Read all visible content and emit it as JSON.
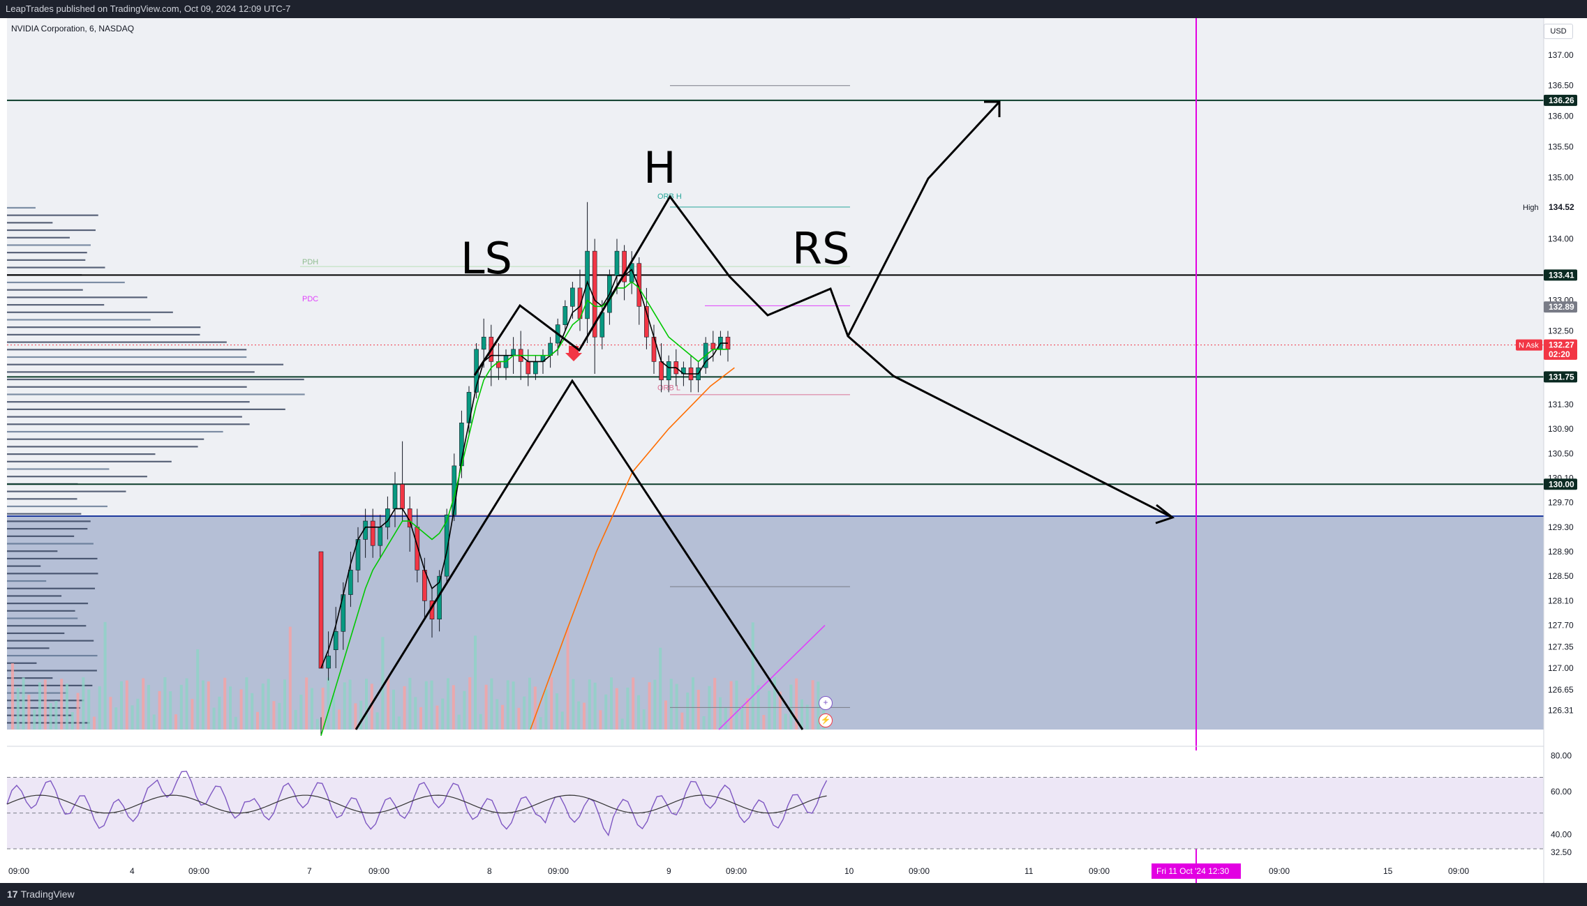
{
  "header": {
    "published": "LeapTrades published on TradingView.com, Oct 09, 2024 12:09 UTC-7",
    "symbol": "NVIDIA Corporation, 6, NASDAQ",
    "currency": "USD"
  },
  "footer": {
    "brand": "TradingView"
  },
  "colors": {
    "bg": "#ffffff",
    "axis_text": "#131722",
    "up": "#089981",
    "down": "#f23645",
    "ema_fast": "#000000",
    "ema_mid": "#00c800",
    "ema_slow": "#ff6d00",
    "vline": "#e200e2",
    "rsi": "#7e57c2",
    "hline_blue": "#1e3a9e"
  },
  "icons": {
    "plus": "plus-icon",
    "lightning": "lightning-icon",
    "arrow_marker": "red-down-arrow-icon"
  },
  "chart_data": {
    "type": "candlestick",
    "title": "NVIDIA Corporation, 6, NASDAQ",
    "interval": "6",
    "ylim": [
      126.0,
      137.6
    ],
    "y_ticks": [
      "137.00",
      "136.50",
      "136.00",
      "135.50",
      "135.00",
      "134.00",
      "133.00",
      "132.50",
      "131.30",
      "130.90",
      "130.50",
      "130.10",
      "129.70",
      "129.30",
      "128.90",
      "128.50",
      "128.10",
      "127.70",
      "127.35",
      "127.00",
      "126.65",
      "126.31"
    ],
    "x_ticks": [
      "09:00",
      "4",
      "09:00",
      "7",
      "09:00",
      "8",
      "09:00",
      "9",
      "09:00",
      "10",
      "09:00",
      "11",
      "09:00",
      "09:00",
      "15",
      "09:00"
    ],
    "price_tags": [
      {
        "value": "136.26",
        "price": 136.26,
        "style": "dark"
      },
      {
        "value": "134.52",
        "price": 134.52,
        "style": "plain",
        "label": "High"
      },
      {
        "value": "133.41",
        "price": 133.41,
        "style": "dark"
      },
      {
        "value": "132.89",
        "price": 132.89,
        "style": "gray"
      },
      {
        "value": "132.27",
        "price": 132.27,
        "style": "red",
        "label": "N Ask"
      },
      {
        "value": "02:20",
        "price": 132.12,
        "style": "red"
      },
      {
        "value": "131.75",
        "price": 131.75,
        "style": "dark"
      },
      {
        "value": "130.00",
        "price": 130.0,
        "style": "dark"
      }
    ],
    "horizontal_levels": [
      {
        "price": 136.26,
        "color": "#0b3d2a"
      },
      {
        "price": 133.41,
        "color": "#000000"
      },
      {
        "price": 131.75,
        "color": "#0b3d2a"
      },
      {
        "price": 130.0,
        "color": "#0b3d2a"
      },
      {
        "price": 129.48,
        "color": "#1e3a9e"
      }
    ],
    "level_labels": [
      {
        "text": "PDH",
        "price": 133.55,
        "color": "#8fbc8f"
      },
      {
        "text": "PDC",
        "price": 132.95,
        "color": "#e040fb"
      },
      {
        "text": "ORB H",
        "price": 134.62,
        "color": "#26a69a"
      },
      {
        "text": "ORB L",
        "price": 131.5,
        "color": "#d87093"
      }
    ],
    "candles": [
      [
        128.9,
        126.2,
        127.0,
        125.9
      ],
      [
        127.0,
        127.6,
        127.2,
        126.8
      ],
      [
        127.3,
        128.0,
        127.6,
        127.0
      ],
      [
        127.6,
        128.4,
        128.2,
        127.3
      ],
      [
        128.2,
        128.9,
        128.6,
        128.0
      ],
      [
        128.6,
        129.3,
        129.1,
        128.4
      ],
      [
        129.1,
        129.6,
        129.4,
        128.8
      ],
      [
        129.4,
        129.6,
        129.0,
        128.8
      ],
      [
        129.0,
        129.5,
        129.3,
        128.8
      ],
      [
        129.3,
        129.8,
        129.6,
        129.1
      ],
      [
        129.6,
        130.2,
        130.0,
        129.3
      ],
      [
        130.0,
        130.7,
        129.6,
        129.4
      ],
      [
        129.6,
        129.8,
        129.3,
        128.9
      ],
      [
        129.3,
        129.6,
        128.6,
        128.4
      ],
      [
        128.6,
        128.8,
        128.1,
        127.8
      ],
      [
        128.1,
        128.3,
        127.8,
        127.5
      ],
      [
        127.8,
        128.6,
        128.5,
        127.6
      ],
      [
        128.5,
        129.6,
        129.5,
        128.4
      ],
      [
        129.5,
        130.5,
        130.3,
        129.4
      ],
      [
        130.3,
        131.2,
        131.0,
        130.1
      ],
      [
        131.0,
        131.6,
        131.5,
        130.8
      ],
      [
        131.5,
        132.3,
        132.2,
        131.4
      ],
      [
        132.2,
        132.7,
        132.4,
        131.9
      ],
      [
        132.4,
        132.6,
        132.0,
        131.6
      ],
      [
        132.0,
        132.3,
        131.9,
        131.7
      ],
      [
        131.9,
        132.2,
        132.1,
        131.7
      ],
      [
        132.1,
        132.4,
        132.2,
        131.8
      ],
      [
        132.2,
        132.5,
        132.0,
        131.7
      ],
      [
        132.0,
        132.2,
        131.8,
        131.6
      ],
      [
        131.8,
        132.1,
        132.0,
        131.7
      ],
      [
        132.0,
        132.2,
        132.1,
        131.8
      ],
      [
        132.1,
        132.4,
        132.3,
        131.9
      ],
      [
        132.3,
        132.7,
        132.6,
        132.1
      ],
      [
        132.6,
        133.0,
        132.9,
        132.5
      ],
      [
        132.9,
        133.3,
        133.2,
        132.7
      ],
      [
        133.2,
        133.5,
        132.7,
        132.5
      ],
      [
        132.7,
        134.6,
        133.8,
        132.3
      ],
      [
        133.8,
        134.0,
        132.4,
        131.8
      ],
      [
        132.4,
        133.0,
        132.8,
        132.2
      ],
      [
        132.8,
        133.5,
        133.4,
        132.6
      ],
      [
        133.4,
        134.0,
        133.8,
        133.1
      ],
      [
        133.8,
        133.9,
        133.3,
        133.0
      ],
      [
        133.3,
        133.8,
        133.6,
        133.1
      ],
      [
        133.6,
        133.7,
        132.9,
        132.6
      ],
      [
        132.9,
        133.2,
        132.4,
        132.2
      ],
      [
        132.4,
        132.6,
        132.0,
        131.8
      ],
      [
        132.0,
        132.3,
        131.7,
        131.5
      ],
      [
        131.7,
        132.1,
        132.0,
        131.5
      ],
      [
        132.0,
        132.2,
        131.8,
        131.6
      ],
      [
        131.8,
        132.0,
        131.9,
        131.6
      ],
      [
        131.9,
        132.1,
        131.7,
        131.5
      ],
      [
        131.7,
        132.0,
        131.9,
        131.5
      ],
      [
        131.9,
        132.4,
        132.3,
        131.8
      ],
      [
        132.3,
        132.5,
        132.2,
        132.0
      ],
      [
        132.2,
        132.5,
        132.4,
        132.1
      ],
      [
        132.4,
        132.5,
        132.2,
        132.0
      ]
    ],
    "ema_fast": [
      127.0,
      127.3,
      127.7,
      128.2,
      128.7,
      129.1,
      129.3,
      129.3,
      129.3,
      129.4,
      129.6,
      129.6,
      129.4,
      129.0,
      128.6,
      128.3,
      128.4,
      128.9,
      129.6,
      130.4,
      131.0,
      131.6,
      132.0,
      132.1,
      132.1,
      132.1,
      132.1,
      132.1,
      132.0,
      132.0,
      132.0,
      132.1,
      132.2,
      132.5,
      132.8,
      132.9,
      133.3,
      133.0,
      132.9,
      133.1,
      133.4,
      133.4,
      133.5,
      133.2,
      132.8,
      132.4,
      132.0,
      131.9,
      131.9,
      131.8,
      131.8,
      131.8,
      132.0,
      132.1,
      132.3,
      132.3
    ],
    "ema_mid": [
      125.9,
      126.3,
      126.7,
      127.1,
      127.5,
      127.9,
      128.3,
      128.6,
      128.8,
      129.0,
      129.2,
      129.4,
      129.4,
      129.3,
      129.2,
      129.1,
      129.2,
      129.4,
      129.8,
      130.3,
      130.8,
      131.3,
      131.7,
      131.9,
      132.0,
      132.0,
      132.1,
      132.1,
      132.1,
      132.1,
      132.1,
      132.1,
      132.2,
      132.4,
      132.6,
      132.7,
      133.0,
      132.9,
      132.9,
      133.0,
      133.2,
      133.2,
      133.3,
      133.2,
      133.0,
      132.8,
      132.6,
      132.4,
      132.3,
      132.2,
      132.1,
      132.0,
      132.1,
      132.2,
      132.2,
      132.2
    ],
    "ema_slow_segment": [
      [
        44,
        126.0
      ],
      [
        56,
        127.6
      ],
      [
        66,
        128.9
      ],
      [
        78,
        130.2
      ],
      [
        90,
        130.9
      ],
      [
        104,
        131.6
      ],
      [
        112,
        131.9
      ]
    ],
    "rsi": {
      "panel_labels": [
        "80.00",
        "60.00",
        "40.00",
        "32.50"
      ],
      "band": [
        40,
        70
      ],
      "mid": 50
    },
    "vertical_marker": {
      "label": "Fri 11 Oct '24  12:30"
    },
    "annotations": [
      {
        "text": "LS"
      },
      {
        "text": "H"
      },
      {
        "text": "RS"
      }
    ]
  }
}
